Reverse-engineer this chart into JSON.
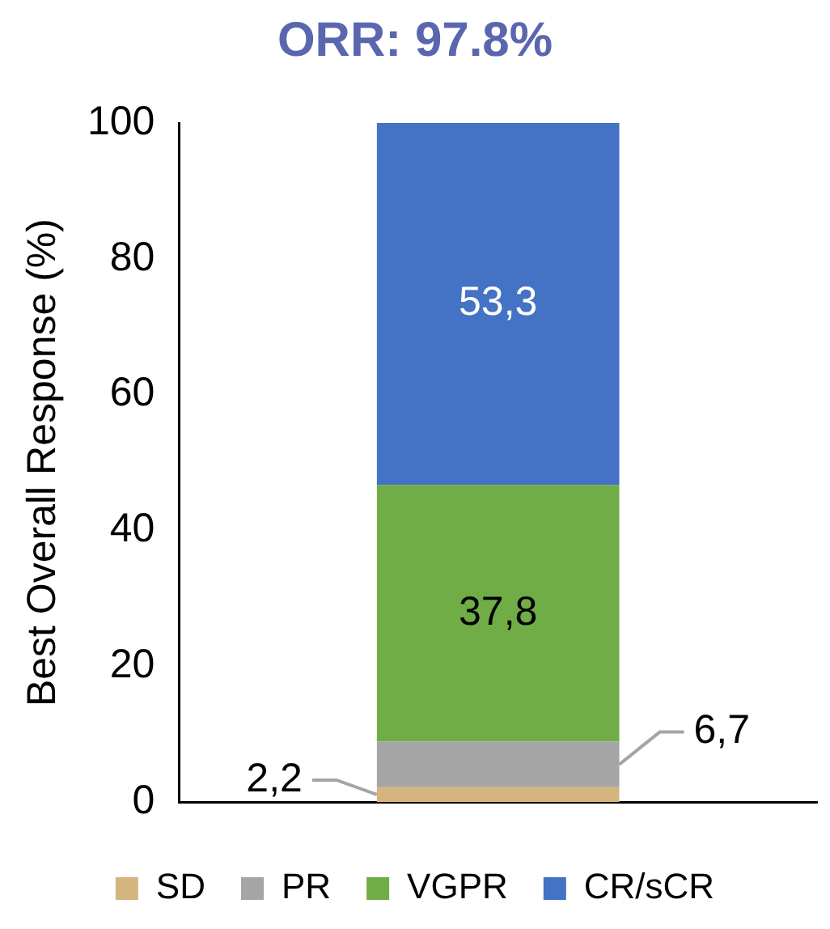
{
  "chart_data": {
    "type": "bar",
    "title": "ORR: 97.8%",
    "ylabel": "Best Overall Response (%)",
    "categories": [
      null
    ],
    "stacked": true,
    "ylim": [
      0,
      100
    ],
    "yticks": [
      0,
      20,
      40,
      60,
      80,
      100
    ],
    "grid": false,
    "legend": "bottom",
    "series": [
      {
        "name": "SD",
        "color": "#d4b47f",
        "values": [
          2.2
        ],
        "value_labels": [
          "2,2"
        ]
      },
      {
        "name": "PR",
        "color": "#a5a5a5",
        "values": [
          6.7
        ],
        "value_labels": [
          "6,7"
        ]
      },
      {
        "name": "VGPR",
        "color": "#70ad47",
        "values": [
          37.8
        ],
        "value_labels": [
          "37,8"
        ]
      },
      {
        "name": "CR/sCR",
        "color": "#4472c4",
        "values": [
          53.3
        ],
        "value_labels": [
          "53,3"
        ]
      }
    ]
  }
}
